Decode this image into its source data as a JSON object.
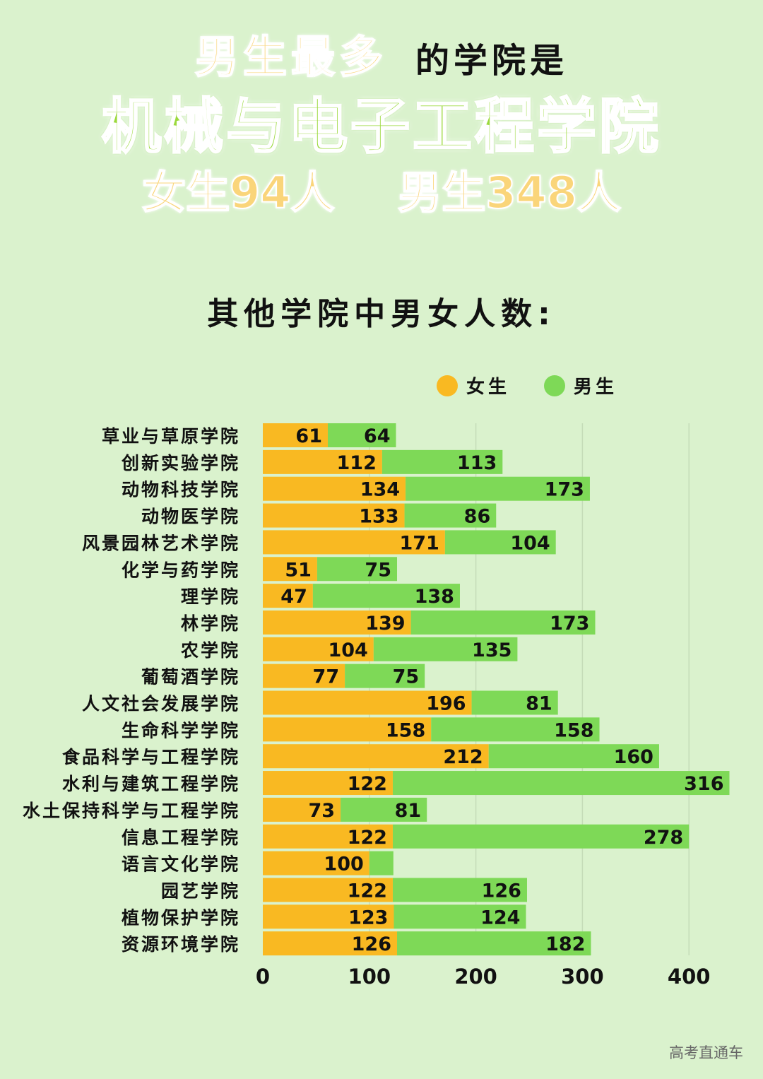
{
  "headline": {
    "highlight": "男生最多",
    "rest": "的学院是",
    "college": "机械与电子工程学院",
    "female_text": "女生94人",
    "male_text": "男生348人"
  },
  "subtitle": "其他学院中男女人数:",
  "watermark": "高考直通车",
  "colors": {
    "background": "#daf2cd",
    "female": "#f9b922",
    "male": "#7ed957",
    "headline_green": "#9bd93c",
    "headline_yellow": "#fad57a"
  },
  "chart_data": {
    "type": "bar",
    "orientation": "horizontal",
    "stacked": true,
    "categories": [
      "草业与草原学院",
      "创新实验学院",
      "动物科技学院",
      "动物医学院",
      "风景园林艺术学院",
      "化学与药学院",
      "理学院",
      "林学院",
      "农学院",
      "葡萄酒学院",
      "人文社会发展学院",
      "生命科学学院",
      "食品科学与工程学院",
      "水利与建筑工程学院",
      "水土保持科学与工程学院",
      "信息工程学院",
      "语言文化学院",
      "园艺学院",
      "植物保护学院",
      "资源环境学院"
    ],
    "series": [
      {
        "name": "女生",
        "values": [
          61,
          112,
          134,
          133,
          171,
          51,
          47,
          139,
          104,
          77,
          196,
          158,
          212,
          122,
          73,
          122,
          100,
          122,
          123,
          126
        ]
      },
      {
        "name": "男生",
        "values": [
          64,
          113,
          173,
          86,
          104,
          75,
          138,
          173,
          135,
          75,
          81,
          158,
          160,
          316,
          81,
          278,
          null,
          126,
          124,
          182
        ]
      }
    ],
    "xlim": [
      0,
      400
    ],
    "xticks": [
      0,
      100,
      200,
      300,
      400
    ],
    "grid": true,
    "legend": "top-right"
  }
}
